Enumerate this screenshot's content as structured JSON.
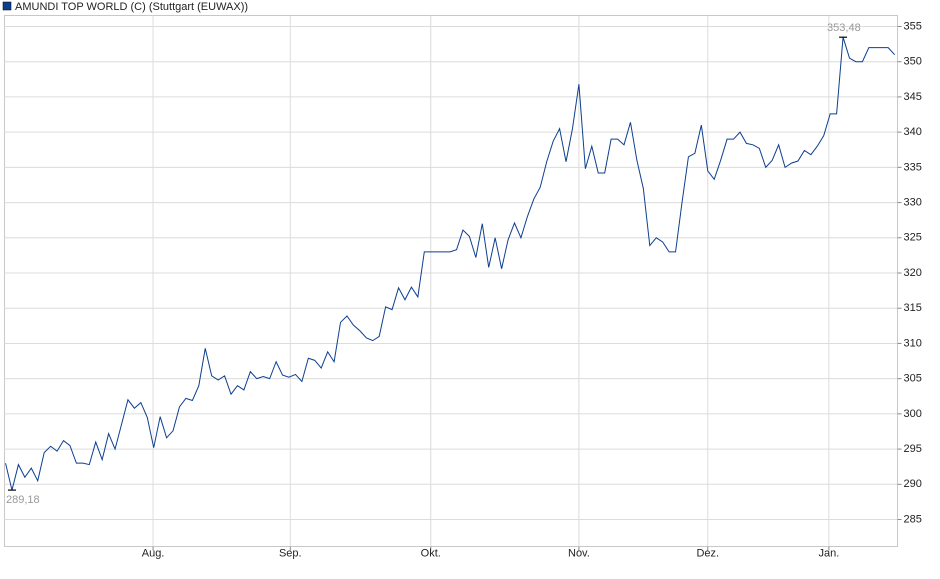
{
  "chart_data": {
    "type": "line",
    "series": [
      {
        "name": "AMUNDI TOP WORLD (C) (Stuttgart (EUWAX))",
        "color": "#0d3f8f",
        "values": [
          293,
          289.18,
          292.8,
          291,
          292.3,
          290.5,
          294.5,
          295.4,
          294.7,
          296.2,
          295.5,
          293,
          293,
          292.8,
          296,
          293.5,
          297.2,
          295,
          298.5,
          302,
          300.8,
          301.6,
          299.5,
          295.2,
          299.6,
          296.6,
          297.6,
          301,
          302.2,
          301.9,
          304,
          309.3,
          305.4,
          304.8,
          305.4,
          302.8,
          304,
          303.4,
          306,
          305,
          305.3,
          305,
          307.4,
          305.5,
          305.2,
          305.6,
          304.6,
          307.9,
          307.6,
          306.5,
          308.8,
          307.4,
          313,
          313.9,
          312.6,
          311.8,
          310.8,
          310.4,
          311,
          315.2,
          314.8,
          317.9,
          316.2,
          318,
          316.6,
          323,
          323,
          323,
          323,
          323,
          323.3,
          326.1,
          325.2,
          322.2,
          327,
          320.8,
          325,
          320.6,
          324.7,
          327.1,
          325,
          328,
          330.5,
          332.2,
          335.8,
          338.7,
          340.5,
          335.8,
          340.5,
          346.8,
          334.8,
          338,
          334.2,
          334.2,
          339,
          339,
          338.2,
          341.4,
          336,
          332,
          323.9,
          325,
          324.4,
          323,
          323,
          330,
          336.5,
          337,
          341,
          334.5,
          333.3,
          336,
          339,
          339,
          340,
          338.4,
          338.2,
          337.7,
          335,
          336,
          338.2,
          335,
          335.6,
          335.9,
          337.4,
          336.8,
          338,
          339.5,
          342.6,
          342.6,
          353.48,
          350.5,
          350,
          350,
          352,
          352,
          352,
          352,
          351
        ]
      }
    ],
    "xlim": [
      -0.16,
      138.45
    ],
    "xticks": [
      {
        "value": 22.9,
        "label": "Aug."
      },
      {
        "value": 44.2,
        "label": "Sep."
      },
      {
        "value": 66.0,
        "label": "Okt."
      },
      {
        "value": 89.0,
        "label": "Nov."
      },
      {
        "value": 109.0,
        "label": "Dez."
      },
      {
        "value": 127.8,
        "label": "Jan."
      }
    ],
    "ylim": [
      281.17,
      356.56
    ],
    "yticks": [
      285,
      290,
      295,
      300,
      305,
      310,
      315,
      320,
      325,
      330,
      335,
      340,
      345,
      350,
      355
    ],
    "grid": true,
    "annotations": [
      {
        "label": "353,48",
        "value": 353.48
      },
      {
        "label": "289,18",
        "value": 289.18
      }
    ]
  }
}
